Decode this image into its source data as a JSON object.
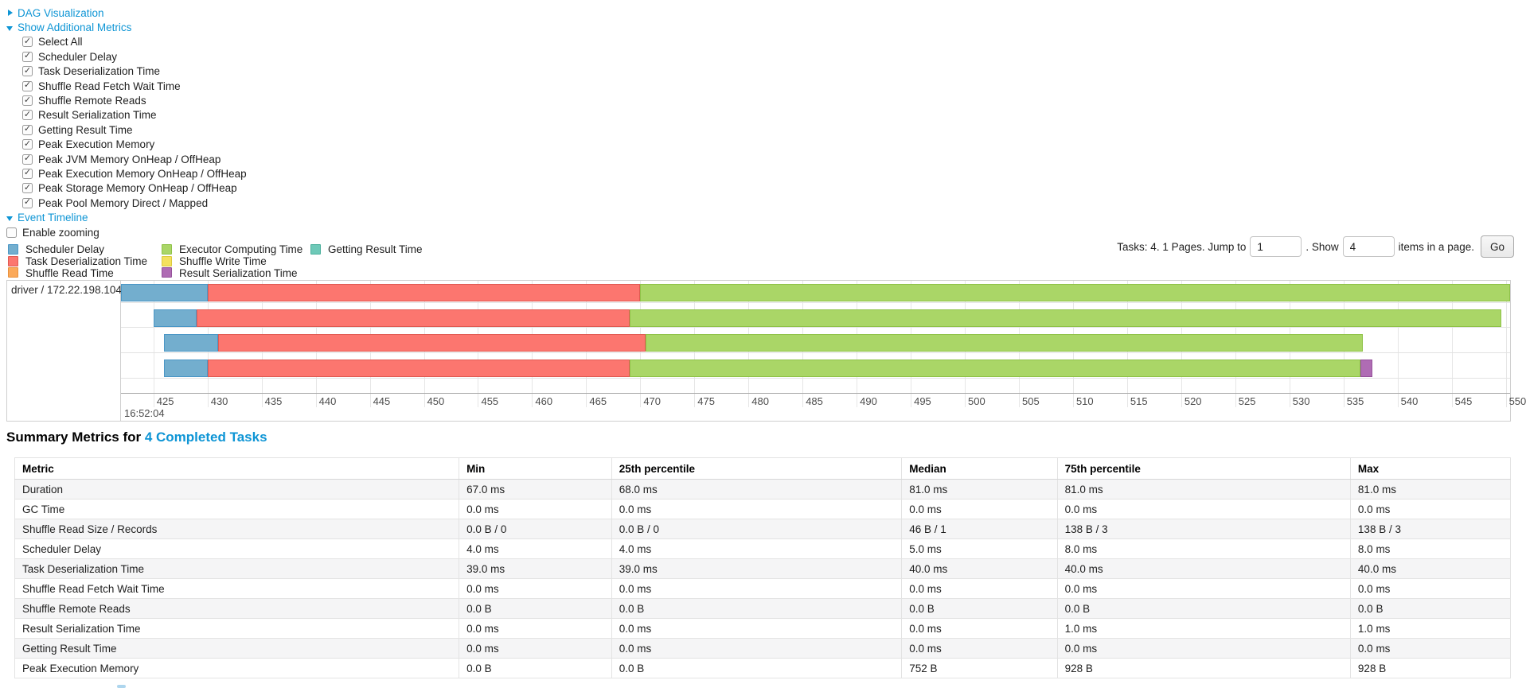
{
  "controls": {
    "dag_label": "DAG Visualization",
    "metrics_label": "Show Additional Metrics",
    "metric_items": [
      "Select All",
      "Scheduler Delay",
      "Task Deserialization Time",
      "Shuffle Read Fetch Wait Time",
      "Shuffle Remote Reads",
      "Result Serialization Time",
      "Getting Result Time",
      "Peak Execution Memory",
      "Peak JVM Memory OnHeap / OffHeap",
      "Peak Execution Memory OnHeap / OffHeap",
      "Peak Storage Memory OnHeap / OffHeap",
      "Peak Pool Memory Direct / Mapped"
    ],
    "event_timeline_label": "Event Timeline",
    "enable_zooming_label": "Enable zooming"
  },
  "colors": {
    "link_blue": "#0e95d5",
    "scheduler_delay": "#73AECE",
    "scheduler_delay_border": "#4B97C6",
    "task_deserialization": "#FC766F",
    "task_deserialization_border": "#E05A52",
    "shuffle_read": "#FBA95A",
    "shuffle_read_border": "#E8913E",
    "executor_computing": "#AAD667",
    "executor_computing_border": "#8FC248",
    "shuffle_write": "#F4E15E",
    "shuffle_write_border": "#DCC93E",
    "result_serialization": "#AF6CB4",
    "result_serialization_border": "#94519A",
    "getting_result": "#6EC9B8",
    "getting_result_border": "#4BB09C"
  },
  "legend": {
    "items": [
      {
        "label": "Scheduler Delay",
        "color_key": "scheduler_delay"
      },
      {
        "label": "Task Deserialization Time",
        "color_key": "task_deserialization"
      },
      {
        "label": "Shuffle Read Time",
        "color_key": "shuffle_read"
      },
      {
        "label": "Executor Computing Time",
        "color_key": "executor_computing"
      },
      {
        "label": "Shuffle Write Time",
        "color_key": "shuffle_write"
      },
      {
        "label": "Result Serialization Time",
        "color_key": "result_serialization"
      },
      {
        "label": "Getting Result Time",
        "color_key": "getting_result"
      }
    ]
  },
  "pagination": {
    "tasks_text": "Tasks: 4. 1 Pages. Jump to",
    "jump_value": "1",
    "show_text": ". Show",
    "show_value": "4",
    "items_text": "items in a page.",
    "go_label": "Go"
  },
  "timeline": {
    "executor_label": "driver / 172.22.198.104",
    "axis": {
      "min": 422.0,
      "max": 550.4,
      "tick_start": 425,
      "tick_step": 5,
      "tick_end": 550,
      "time_label": "16:52:04"
    },
    "tasks": [
      {
        "segments": [
          {
            "name": "scheduler-delay",
            "color_key": "scheduler_delay",
            "start": 422.0,
            "end": 430.0
          },
          {
            "name": "task-deserialization",
            "color_key": "task_deserialization",
            "start": 430.0,
            "end": 470.0
          },
          {
            "name": "executor-computing",
            "color_key": "executor_computing",
            "start": 470.0,
            "end": 550.4
          }
        ]
      },
      {
        "segments": [
          {
            "name": "scheduler-delay",
            "color_key": "scheduler_delay",
            "start": 425.0,
            "end": 429.0
          },
          {
            "name": "task-deserialization",
            "color_key": "task_deserialization",
            "start": 429.0,
            "end": 469.0
          },
          {
            "name": "executor-computing",
            "color_key": "executor_computing",
            "start": 469.0,
            "end": 549.6
          }
        ]
      },
      {
        "segments": [
          {
            "name": "scheduler-delay",
            "color_key": "scheduler_delay",
            "start": 426.0,
            "end": 431.0
          },
          {
            "name": "task-deserialization",
            "color_key": "task_deserialization",
            "start": 431.0,
            "end": 470.5
          },
          {
            "name": "executor-computing",
            "color_key": "executor_computing",
            "start": 470.5,
            "end": 536.8
          }
        ]
      },
      {
        "segments": [
          {
            "name": "scheduler-delay",
            "color_key": "scheduler_delay",
            "start": 426.0,
            "end": 430.0
          },
          {
            "name": "task-deserialization",
            "color_key": "task_deserialization",
            "start": 430.0,
            "end": 469.0
          },
          {
            "name": "executor-computing",
            "color_key": "executor_computing",
            "start": 469.0,
            "end": 536.6
          },
          {
            "name": "result-serialization",
            "color_key": "result_serialization",
            "start": 536.6,
            "end": 537.7
          }
        ]
      }
    ]
  },
  "summary": {
    "title_prefix": "Summary Metrics for ",
    "title_link": "4 Completed Tasks",
    "headers": [
      "Metric",
      "Min",
      "25th percentile",
      "Median",
      "75th percentile",
      "Max"
    ],
    "col_widths_pct": [
      29.7,
      10.2,
      19.4,
      10.4,
      19.6,
      10.7
    ],
    "rows": [
      [
        "Duration",
        "67.0 ms",
        "68.0 ms",
        "81.0 ms",
        "81.0 ms",
        "81.0 ms"
      ],
      [
        "GC Time",
        "0.0 ms",
        "0.0 ms",
        "0.0 ms",
        "0.0 ms",
        "0.0 ms"
      ],
      [
        "Shuffle Read Size / Records",
        "0.0 B / 0",
        "0.0 B / 0",
        "46 B / 1",
        "138 B / 3",
        "138 B / 3"
      ],
      [
        "Scheduler Delay",
        "4.0 ms",
        "4.0 ms",
        "5.0 ms",
        "8.0 ms",
        "8.0 ms"
      ],
      [
        "Task Deserialization Time",
        "39.0 ms",
        "39.0 ms",
        "40.0 ms",
        "40.0 ms",
        "40.0 ms"
      ],
      [
        "Shuffle Read Fetch Wait Time",
        "0.0 ms",
        "0.0 ms",
        "0.0 ms",
        "0.0 ms",
        "0.0 ms"
      ],
      [
        "Shuffle Remote Reads",
        "0.0 B",
        "0.0 B",
        "0.0 B",
        "0.0 B",
        "0.0 B"
      ],
      [
        "Result Serialization Time",
        "0.0 ms",
        "0.0 ms",
        "0.0 ms",
        "1.0 ms",
        "1.0 ms"
      ],
      [
        "Getting Result Time",
        "0.0 ms",
        "0.0 ms",
        "0.0 ms",
        "0.0 ms",
        "0.0 ms"
      ],
      [
        "Peak Execution Memory",
        "0.0 B",
        "0.0 B",
        "752 B",
        "928 B",
        "928 B"
      ]
    ]
  }
}
